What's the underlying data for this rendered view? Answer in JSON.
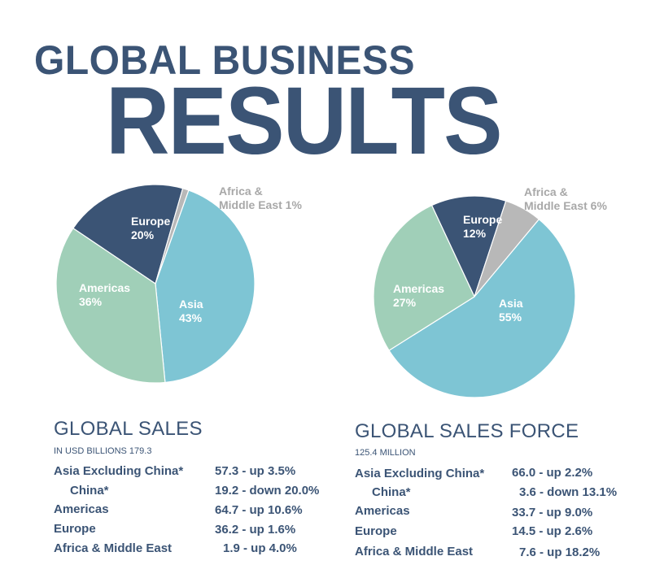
{
  "title": {
    "line1": "GLOBAL BUSINESS",
    "line2": "RESULTS"
  },
  "colors": {
    "navy": "#3b5475",
    "europe": "#3b5475",
    "americas": "#a0cfb8",
    "asia": "#7ec5d4",
    "africa": "#b8b8b8",
    "africa_label": "#a8a8a8"
  },
  "chart_data": [
    {
      "type": "pie",
      "slices": [
        {
          "label": "Europe",
          "value": 20,
          "value_text": "20%",
          "color": "#3b5475"
        },
        {
          "label": "Africa &",
          "label2": "Middle East 1%",
          "value": 1,
          "value_text": "1%",
          "color": "#b8b8b8"
        },
        {
          "label": "Asia",
          "value": 43,
          "value_text": "43%",
          "color": "#7ec5d4"
        },
        {
          "label": "Americas",
          "value": 36,
          "value_text": "36%",
          "color": "#a0cfb8"
        }
      ]
    },
    {
      "type": "pie",
      "slices": [
        {
          "label": "Europe",
          "value": 12,
          "value_text": "12%",
          "color": "#3b5475"
        },
        {
          "label": "Africa &",
          "label2": "Middle East 6%",
          "value": 6,
          "value_text": "6%",
          "color": "#b8b8b8"
        },
        {
          "label": "Asia",
          "value": 55,
          "value_text": "55%",
          "color": "#7ec5d4"
        },
        {
          "label": "Americas",
          "value": 27,
          "value_text": "27%",
          "color": "#a0cfb8"
        }
      ]
    }
  ],
  "global_sales": {
    "title": "GLOBAL SALES",
    "subtitle": "IN USD BILLIONS 179.3",
    "rows": [
      {
        "label": "Asia Excluding China*",
        "value": "57.3 - up 3.5%"
      },
      {
        "label": "China*",
        "value": "19.2 - down 20.0%"
      },
      {
        "label": "Americas",
        "value": "64.7 - up 10.6%"
      },
      {
        "label": "Europe",
        "value": "36.2 - up 1.6%"
      },
      {
        "label": "Africa & Middle East",
        "value": "1.9 - up 4.0%"
      }
    ]
  },
  "global_sales_force": {
    "title": "GLOBAL SALES FORCE",
    "subtitle": "125.4 MILLION",
    "rows": [
      {
        "label": "Asia Excluding China*",
        "value": "66.0 - up 2.2%"
      },
      {
        "label": "China*",
        "value": "3.6 - down 13.1%"
      },
      {
        "label": "Americas",
        "value": "33.7 - up 9.0%"
      },
      {
        "label": "Europe",
        "value": "14.5 - up 2.6%"
      },
      {
        "label": "Africa & Middle East",
        "value": "7.6 - up 18.2%"
      }
    ]
  }
}
